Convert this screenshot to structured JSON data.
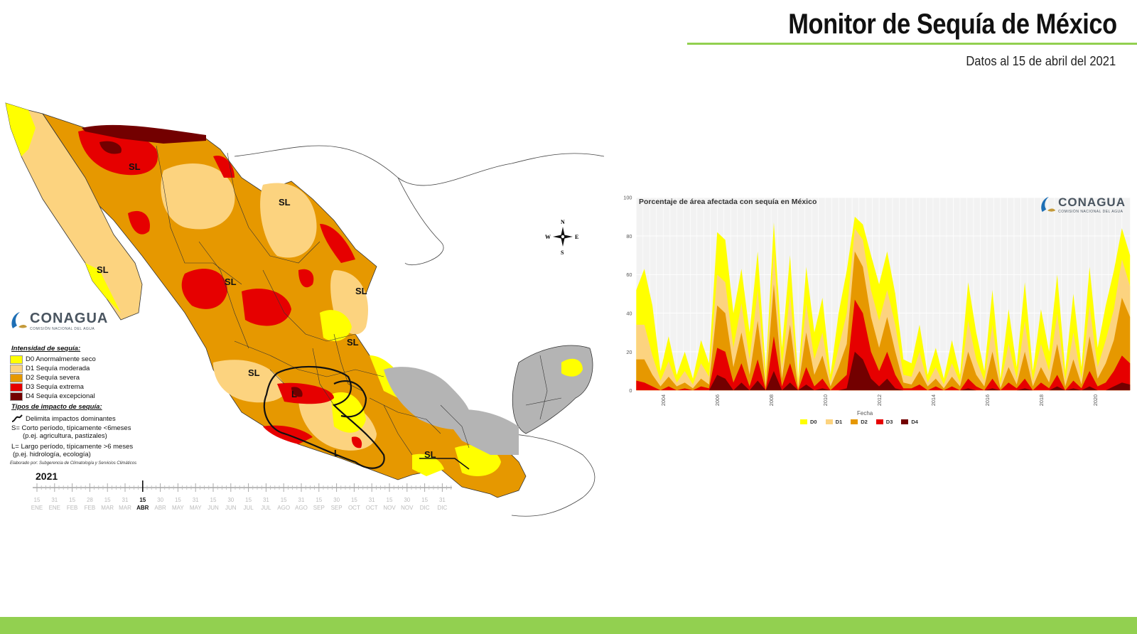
{
  "header": {
    "title": "Monitor de Sequía de México",
    "subtitle": "Datos al 15 de abril  del 2021"
  },
  "colors": {
    "accent_green": "#92d050",
    "D0": "#ffff00",
    "D1": "#fcd37f",
    "D2": "#e69800",
    "D3": "#e60000",
    "D4": "#730000",
    "no_drought": "#b4b4b4"
  },
  "map": {
    "logo": {
      "wordmark": "CONAGUA",
      "tagline": "COMISIÓN NACIONAL DEL AGUA",
      "icon": "conagua-logo-icon"
    },
    "compass": {
      "n": "N",
      "s": "S",
      "e": "E",
      "w": "W"
    },
    "region_labels": [
      "SL",
      "SL",
      "SL",
      "SL",
      "SL",
      "SL",
      "SL",
      "SL",
      "L",
      "L"
    ],
    "legend": {
      "intensity_title": "Intensidad de sequía:",
      "intensity_items": [
        {
          "code": "D0",
          "label": "D0 Anormalmente seco"
        },
        {
          "code": "D1",
          "label": "D1 Sequía moderada"
        },
        {
          "code": "D2",
          "label": "D2 Sequía severa"
        },
        {
          "code": "D3",
          "label": "D3 Sequía extrema"
        },
        {
          "code": "D4",
          "label": "D4 Sequía excepcional"
        }
      ],
      "impact_title": "Tipos de impacto de sequía:",
      "impact_line": "Delimita impactos dominantes",
      "short_term": "S= Corto período, típicamente <6meses",
      "short_term_eg": "(p.ej. agricultura, pastizales)",
      "long_term": "L= Largo período, típicamente >6 meses",
      "long_term_eg": "(p.ej. hidrología, ecología)",
      "credit": "Elaborado por: Subgerencia de Climatología y Servicios Climáticos"
    },
    "timeline": {
      "year": "2021",
      "days": [
        "15",
        "31",
        "15",
        "28",
        "15",
        "31",
        "15",
        "30",
        "15",
        "31",
        "15",
        "30",
        "15",
        "31",
        "15",
        "31",
        "15",
        "30",
        "15",
        "31",
        "15",
        "30",
        "15",
        "31"
      ],
      "months": [
        "ENE",
        "ENE",
        "FEB",
        "FEB",
        "MAR",
        "MAR",
        "ABR",
        "ABR",
        "MAY",
        "MAY",
        "JUN",
        "JUN",
        "JUL",
        "JUL",
        "AGO",
        "AGO",
        "SEP",
        "SEP",
        "OCT",
        "OCT",
        "NOV",
        "NOV",
        "DIC",
        "DIC"
      ],
      "current_index": 6
    }
  },
  "chart": {
    "title": "Porcentaje de área afectada con sequía en México",
    "logo": {
      "wordmark": "CONAGUA",
      "tagline": "COMISIÓN NACIONAL DEL AGUA"
    }
  },
  "chart_data": {
    "type": "area",
    "title": "Porcentaje de área afectada con sequía en México",
    "xlabel": "Fecha",
    "ylabel": "",
    "ylim": [
      0,
      100
    ],
    "yticks": [
      0,
      20,
      40,
      60,
      80,
      100
    ],
    "xlim": [
      2003.0,
      2021.3
    ],
    "xticks": [
      "2004",
      "2006",
      "2008",
      "2010",
      "2012",
      "2014",
      "2016",
      "2018",
      "2020"
    ],
    "grid": true,
    "legend_position": "bottom",
    "x": [
      2003.0,
      2003.3,
      2003.6,
      2003.9,
      2004.2,
      2004.5,
      2004.8,
      2005.1,
      2005.4,
      2005.7,
      2006.0,
      2006.3,
      2006.6,
      2006.9,
      2007.2,
      2007.5,
      2007.8,
      2008.1,
      2008.4,
      2008.7,
      2009.0,
      2009.3,
      2009.6,
      2009.9,
      2010.2,
      2010.5,
      2010.8,
      2011.1,
      2011.4,
      2011.7,
      2012.0,
      2012.3,
      2012.6,
      2012.9,
      2013.2,
      2013.5,
      2013.8,
      2014.1,
      2014.4,
      2014.7,
      2015.0,
      2015.3,
      2015.6,
      2015.9,
      2016.2,
      2016.5,
      2016.8,
      2017.1,
      2017.4,
      2017.7,
      2018.0,
      2018.3,
      2018.6,
      2018.9,
      2019.2,
      2019.5,
      2019.8,
      2020.1,
      2020.4,
      2020.7,
      2021.0,
      2021.3
    ],
    "series": [
      {
        "name": "D0",
        "values": [
          52,
          63,
          44,
          10,
          28,
          8,
          20,
          6,
          26,
          14,
          82,
          78,
          40,
          63,
          30,
          72,
          10,
          87,
          22,
          70,
          6,
          64,
          30,
          48,
          8,
          40,
          62,
          90,
          86,
          70,
          55,
          72,
          50,
          16,
          14,
          34,
          8,
          22,
          6,
          26,
          8,
          56,
          30,
          10,
          52,
          6,
          42,
          12,
          56,
          10,
          42,
          20,
          60,
          10,
          50,
          12,
          64,
          22,
          44,
          62,
          84,
          70
        ]
      },
      {
        "name": "D1",
        "values": [
          34,
          34,
          18,
          5,
          15,
          4,
          10,
          3,
          14,
          7,
          60,
          56,
          22,
          45,
          16,
          52,
          5,
          72,
          12,
          50,
          3,
          45,
          16,
          30,
          4,
          22,
          40,
          84,
          78,
          52,
          36,
          52,
          34,
          8,
          7,
          20,
          4,
          12,
          3,
          14,
          4,
          36,
          16,
          5,
          34,
          3,
          24,
          6,
          36,
          5,
          24,
          10,
          40,
          5,
          30,
          6,
          44,
          12,
          26,
          42,
          68,
          54
        ]
      },
      {
        "name": "D2",
        "values": [
          16,
          16,
          8,
          2,
          7,
          2,
          4,
          1,
          6,
          3,
          44,
          40,
          12,
          30,
          8,
          36,
          2,
          55,
          6,
          34,
          1,
          30,
          8,
          18,
          2,
          12,
          24,
          72,
          64,
          38,
          22,
          38,
          20,
          4,
          3,
          10,
          2,
          6,
          1,
          7,
          2,
          20,
          8,
          2,
          20,
          1,
          12,
          3,
          20,
          2,
          12,
          4,
          24,
          2,
          16,
          3,
          28,
          6,
          14,
          26,
          48,
          38
        ]
      },
      {
        "name": "D3",
        "values": [
          5,
          4,
          2,
          0,
          2,
          0,
          1,
          0,
          2,
          1,
          22,
          20,
          4,
          14,
          2,
          16,
          0,
          28,
          2,
          14,
          0,
          12,
          2,
          6,
          0,
          4,
          8,
          47,
          40,
          20,
          10,
          20,
          8,
          1,
          1,
          3,
          0,
          2,
          0,
          2,
          0,
          6,
          2,
          0,
          6,
          0,
          4,
          1,
          6,
          0,
          4,
          1,
          8,
          0,
          5,
          1,
          10,
          2,
          4,
          10,
          18,
          14
        ]
      },
      {
        "name": "D4",
        "values": [
          0,
          0,
          0,
          0,
          0,
          0,
          0,
          0,
          0,
          0,
          8,
          6,
          0,
          4,
          0,
          5,
          0,
          10,
          0,
          4,
          0,
          3,
          0,
          1,
          0,
          0,
          1,
          20,
          16,
          6,
          2,
          6,
          1,
          0,
          0,
          0,
          0,
          0,
          0,
          0,
          0,
          1,
          0,
          0,
          1,
          0,
          0,
          0,
          1,
          0,
          0,
          0,
          2,
          0,
          1,
          0,
          2,
          0,
          0,
          2,
          4,
          3
        ]
      }
    ]
  }
}
